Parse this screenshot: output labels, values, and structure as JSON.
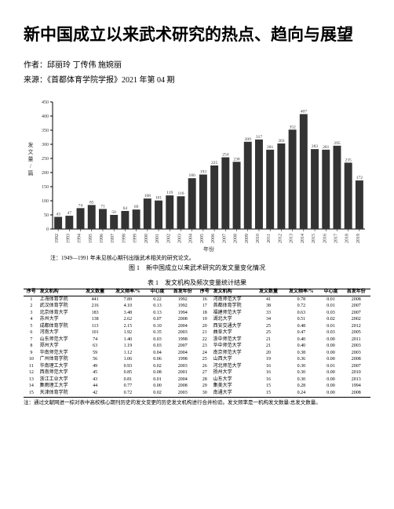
{
  "title": "新中国成立以来武术研究的热点、趋向与展望",
  "author_line": "作者：邱丽玲 丁传伟 施婉丽",
  "source_line": "来源：《首都体育学院学报》2021 年第 04 期",
  "chart": {
    "type": "bar",
    "ylabel": "发文量/篇",
    "xlabel": "年份",
    "ylim": [
      0,
      450
    ],
    "ytick_step": 50,
    "yticks": [
      0,
      50,
      100,
      150,
      200,
      250,
      300,
      350,
      400,
      450
    ],
    "bar_color": "#333333",
    "label_color": "#333333",
    "axis_color": "#000000",
    "label_fontsize": 6,
    "years": [
      "1992",
      "1993",
      "1994",
      "1995",
      "1996",
      "1997",
      "1998",
      "1999",
      "2000",
      "2001",
      "2002",
      "2003",
      "2004",
      "2005",
      "2006",
      "2007",
      "2008",
      "2009",
      "2010",
      "2011",
      "2012",
      "2013",
      "2014",
      "2015",
      "2016",
      "2017",
      "2018",
      "2019"
    ],
    "values": [
      43,
      47,
      74,
      85,
      71,
      50,
      64,
      69,
      108,
      101,
      119,
      116,
      180,
      193,
      225,
      254,
      238,
      309,
      317,
      281,
      303,
      352,
      407,
      283,
      281,
      295,
      235,
      172
    ],
    "note": "注：1949—1991 年未见核心期刊出版武术相关的研究论文。",
    "caption": "图 1　新中国成立以来武术研究的发文量变化情况"
  },
  "table": {
    "caption": "表 1　发文机构及频次变量统计结果",
    "columns": [
      "序号",
      "发文机构",
      "发文数量",
      "发文频率/%",
      "中心度",
      "首发年份",
      "序号",
      "发文机构",
      "发文数量",
      "发文频率/%",
      "中心度",
      "首发年份"
    ],
    "rows": [
      [
        "1",
        "上海体育学院",
        "441",
        "7.89",
        "0.22",
        "1992",
        "16",
        "河南师范大学",
        "41",
        "0.78",
        "0.01",
        "2008"
      ],
      [
        "2",
        "武汉体育学院",
        "216",
        "4.10",
        "0.13",
        "1992",
        "17",
        "首都体育学院",
        "38",
        "0.72",
        "0.01",
        "2007"
      ],
      [
        "3",
        "北京体育大学",
        "183",
        "3.48",
        "0.13",
        "1994",
        "18",
        "福建师范大学",
        "33",
        "0.63",
        "0.03",
        "2007"
      ],
      [
        "4",
        "苏州大学",
        "138",
        "2.62",
        "0.07",
        "2008",
        "19",
        "湖北大学",
        "34",
        "0.51",
        "0.02",
        "2002"
      ],
      [
        "5",
        "成都体育学院",
        "113",
        "2.15",
        "0.10",
        "2004",
        "20",
        "西安交通大学",
        "25",
        "0.48",
        "0.01",
        "2012"
      ],
      [
        "6",
        "河南大学",
        "101",
        "1.92",
        "0.35",
        "2003",
        "21",
        "曲阜大学",
        "25",
        "0.47",
        "0.03",
        "2005"
      ],
      [
        "7",
        "山东师范大学",
        "74",
        "1.40",
        "0.03",
        "1998",
        "22",
        "浙中师范大学",
        "21",
        "0.40",
        "0.00",
        "2011"
      ],
      [
        "8",
        "郑州大学",
        "63",
        "1.19",
        "0.03",
        "2007",
        "23",
        "华中师范大学",
        "21",
        "0.40",
        "0.00",
        "2003"
      ],
      [
        "9",
        "华南师范大学",
        "59",
        "1.12",
        "0.04",
        "2004",
        "24",
        "南京师范大学",
        "20",
        "0.38",
        "0.00",
        "2003"
      ],
      [
        "10",
        "广州体育学院",
        "56",
        "1.06",
        "0.06",
        "1998",
        "25",
        "山西大学",
        "19",
        "0.36",
        "0.00",
        "2008"
      ],
      [
        "11",
        "华南理工大学",
        "49",
        "0.93",
        "0.02",
        "2003",
        "26",
        "河北师范大学",
        "16",
        "0.30",
        "0.01",
        "2007"
      ],
      [
        "12",
        "西南师范大学",
        "45",
        "0.85",
        "0.08",
        "2001",
        "27",
        "扬州大学",
        "16",
        "0.30",
        "0.00",
        "2010"
      ],
      [
        "13",
        "浙江工业大学",
        "43",
        "0.81",
        "0.01",
        "2004",
        "28",
        "山东大学",
        "16",
        "0.30",
        "0.00",
        "2013"
      ],
      [
        "14",
        "集雨理工大学",
        "44",
        "0.77",
        "0.00",
        "2008",
        "29",
        "集美大学",
        "15",
        "0.28",
        "0.00",
        "1994"
      ],
      [
        "15",
        "天津体育学院",
        "42",
        "0.72",
        "0.02",
        "2003",
        "30",
        "南通大学",
        "15",
        "0.24",
        "0.00",
        "2008"
      ]
    ],
    "footnote": "注：通过文献网进一棕对表中高校核心期刊历史的发文变更的历史发文机构进行合并检验。发文频率是一机构发文数量/总发文数量。"
  }
}
